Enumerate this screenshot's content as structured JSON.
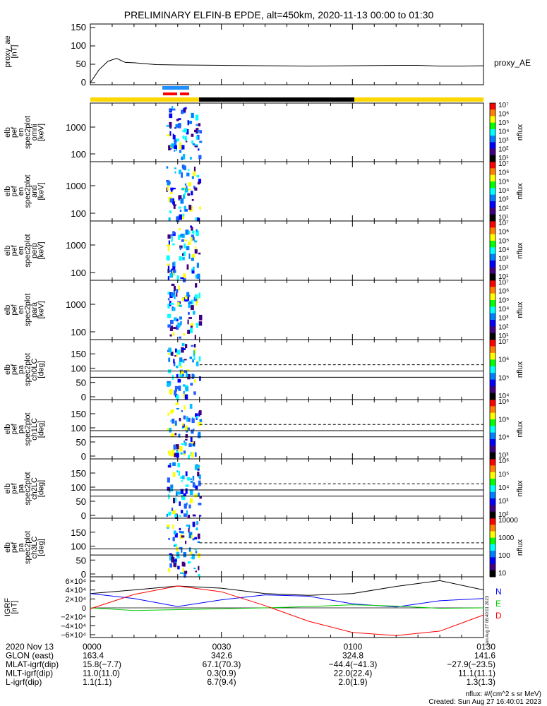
{
  "title": "PRELIMINARY ELFIN-B EPDE, alt=450km, 2020-11-13 00:00 to 01:30",
  "colors": {
    "axis": "#000000",
    "ae_line": "#000000",
    "bar_sci_blue": "#1e90ff",
    "bar_sci_red": "#ff0000",
    "bar_sun": "#ffd700",
    "bar_shadow": "#000000",
    "igrf_n": "#0000ff",
    "igrf_e": "#00cc00",
    "igrf_d": "#ff0000",
    "igrf_total": "#000000"
  },
  "panels": [
    {
      "id": "proxy_ae",
      "ylabel": [
        "proxy_ae",
        "[nT]"
      ],
      "yticks": [
        "150",
        "100",
        "50",
        "0"
      ],
      "ylim": [
        0,
        150
      ],
      "right_label": "proxy_AE"
    },
    {
      "id": "en_omni",
      "ylabel": [
        "elb",
        "pef",
        "en",
        "spec2plot",
        "omni",
        "[keV]"
      ],
      "yticks": [
        "1000",
        "100"
      ],
      "scale": "log",
      "cbar": [
        "10⁷",
        "10⁶",
        "10⁵",
        "10⁴",
        "10³",
        "10²",
        "10¹"
      ],
      "cbar_label": "nflux"
    },
    {
      "id": "en_anti",
      "ylabel": [
        "elb",
        "pef",
        "en",
        "spec2plot",
        "anti",
        "[keV]"
      ],
      "yticks": [
        "1000",
        "100"
      ],
      "scale": "log",
      "cbar": [
        "10⁷",
        "10⁶",
        "10⁵",
        "10⁴",
        "10³",
        "10²",
        "10¹"
      ],
      "cbar_label": "nflux"
    },
    {
      "id": "en_perp",
      "ylabel": [
        "elb",
        "pef",
        "en",
        "spec2plot",
        "perp",
        "[keV]"
      ],
      "yticks": [
        "1000",
        "100"
      ],
      "scale": "log",
      "cbar": [
        "10⁷",
        "10⁶",
        "10⁵",
        "10⁴",
        "10³",
        "10²",
        "10¹"
      ],
      "cbar_label": "nflux"
    },
    {
      "id": "en_para",
      "ylabel": [
        "elb",
        "pef",
        "en",
        "spec2plot",
        "para",
        "[keV]"
      ],
      "yticks": [
        "1000",
        "100"
      ],
      "scale": "log",
      "cbar": [
        "10⁷",
        "10⁶",
        "10⁵",
        "10⁴",
        "10³",
        "10²",
        "10¹"
      ],
      "cbar_label": "nflux"
    },
    {
      "id": "pa_ch0",
      "ylabel": [
        "elb",
        "pef",
        "pa",
        "spec2plot",
        "ch0LC",
        "[deg]"
      ],
      "yticks": [
        "150",
        "100",
        "50",
        "0"
      ],
      "cbar": [
        "10⁷",
        "10⁶",
        "10⁵",
        "10⁴"
      ],
      "cbar_label": "nflux"
    },
    {
      "id": "pa_ch1",
      "ylabel": [
        "elb",
        "pef",
        "pa",
        "spec2plot",
        "ch1LC",
        "[deg]"
      ],
      "yticks": [
        "150",
        "100",
        "50",
        "0"
      ],
      "cbar": [
        "10⁶",
        "10⁵",
        "10⁴",
        "10³"
      ],
      "cbar_label": "nflux"
    },
    {
      "id": "pa_ch2",
      "ylabel": [
        "elb",
        "pef",
        "pa",
        "spec2plot",
        "ch2LC",
        "[deg]"
      ],
      "yticks": [
        "150",
        "100",
        "50",
        "0"
      ],
      "cbar": [
        "10⁶",
        "10⁵",
        "10⁴",
        "10³",
        "10²"
      ],
      "cbar_label": "nflux"
    },
    {
      "id": "pa_ch3",
      "ylabel": [
        "elb",
        "pef",
        "pa",
        "spec2plot",
        "ch3LC",
        "[deg]"
      ],
      "yticks": [
        "150",
        "100",
        "50",
        "0"
      ],
      "cbar": [
        "10000",
        "1000",
        "100",
        "10"
      ],
      "cbar_label": "nflux"
    },
    {
      "id": "igrf",
      "ylabel": [
        "IGRF",
        "[nT]"
      ],
      "yticks": [
        "6×10⁴",
        "4×10⁴",
        "2×10⁴",
        "0",
        "−2×10⁴",
        "−4×10⁴",
        "−6×10⁴"
      ],
      "legend": [
        "N",
        "E",
        "D"
      ]
    }
  ],
  "chart_data": {
    "type": "line",
    "x_ticks": [
      "0000",
      "0030",
      "0100",
      "0130"
    ],
    "proxy_ae": {
      "t_min": [
        0,
        2,
        4,
        6,
        8,
        10,
        15,
        20,
        30,
        40,
        50,
        60,
        70,
        75,
        80,
        85,
        90
      ],
      "values": [
        0,
        35,
        58,
        66,
        55,
        54,
        49,
        48,
        47,
        46,
        45,
        46,
        47,
        47,
        45,
        45,
        46
      ]
    },
    "igrf": {
      "t_min": [
        0,
        10,
        20,
        30,
        40,
        50,
        60,
        70,
        80,
        90
      ],
      "N": [
        32000,
        21000,
        3000,
        18000,
        29000,
        26000,
        9000,
        2000,
        16000,
        21000
      ],
      "E": [
        0,
        -6000,
        -4000,
        -2000,
        0,
        3000,
        7000,
        4000,
        -1000,
        0
      ],
      "D": [
        -2000,
        30000,
        49000,
        36000,
        5000,
        -30000,
        -55000,
        -62000,
        -52000,
        -16000
      ],
      "total": [
        32000,
        40000,
        49000,
        44000,
        32000,
        28000,
        32000,
        48000,
        61000,
        40000
      ]
    },
    "flux_band_t_min": [
      17,
      25
    ]
  },
  "footer": {
    "rows": [
      {
        "label": "2020 Nov 13",
        "vals": [
          "0000",
          "0030",
          "0100",
          "0130"
        ]
      },
      {
        "label": "GLON (east)",
        "vals": [
          "163.4",
          "342.6",
          "324.8",
          "141.6"
        ]
      },
      {
        "label": "MLAT-igrf(dip)",
        "vals": [
          "15.8(−7.7)",
          "67.1(70.3)",
          "−44.4(−41.3)",
          "−27.9(−23.5)"
        ]
      },
      {
        "label": "MLT-igrf(dip)",
        "vals": [
          "11.0(11.0)",
          "0.3(0.9)",
          "22.0(22.4)",
          "11.1(11.1)"
        ]
      },
      {
        "label": "L-igrf(dip)",
        "vals": [
          "1.1(1.1)",
          "6.7(9.4)",
          "2.0(1.9)",
          "1.3(1.3)"
        ]
      }
    ],
    "note1": "nflux: #/(cm^2 s sr MeV)",
    "note2": "Created: Sun Aug 27 16:40:01 2023",
    "side_stamp": "Sun Aug 27 06:40:01 2023"
  }
}
